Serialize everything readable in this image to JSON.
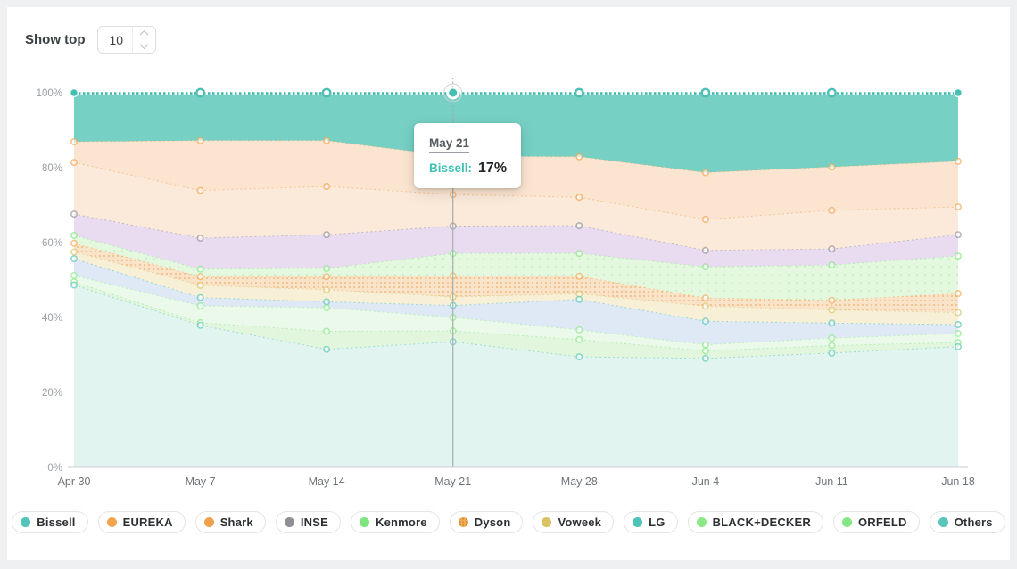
{
  "page": {
    "background": "#eef0f2",
    "card_background": "#ffffff"
  },
  "controls": {
    "show_top_label": "Show top",
    "show_top_value": "10"
  },
  "tooltip": {
    "date": "May 21",
    "series_label": "Bissell:",
    "value": "17%",
    "accent_color": "#3fc0b4"
  },
  "chart_data": {
    "type": "area",
    "stacked": true,
    "units": "percent",
    "x": [
      "Apr 30",
      "May 7",
      "May 14",
      "May 21",
      "May 28",
      "Jun 4",
      "Jun 11",
      "Jun 18"
    ],
    "y_ticks": [
      "0%",
      "20%",
      "40%",
      "60%",
      "80%",
      "100%"
    ],
    "ylim": [
      0,
      100
    ],
    "grid": false,
    "legend_position": "bottom",
    "highlight": {
      "x": "May 21",
      "x_index": 3,
      "series": "Bissell",
      "value_percent": 17
    },
    "axis_colors": {
      "tick_label": "#9aa0a3",
      "x_label": "#6e7479",
      "axis_line": "#c9cdd0"
    },
    "series": [
      {
        "name": "Bissell",
        "color": "#53c4b8",
        "fill": "#76d0c4",
        "values": [
          13.1,
          12.8,
          12.8,
          17.0,
          17.1,
          21.3,
          19.8,
          18.3
        ]
      },
      {
        "name": "EUREKA",
        "color": "#f2a44e",
        "fill": "#fbe4d0",
        "values": [
          5.5,
          13.3,
          12.2,
          10.2,
          10.8,
          12.5,
          11.6,
          12.2
        ]
      },
      {
        "name": "Shark",
        "color": "#f0a149",
        "fill": "#fbe9d9",
        "values": [
          13.8,
          12.7,
          12.9,
          8.4,
          7.6,
          8.3,
          10.3,
          7.4
        ]
      },
      {
        "name": "INSE",
        "color": "#8f8f97",
        "fill": "#e9dcf0",
        "values": [
          5.7,
          8.3,
          9.0,
          7.3,
          7.4,
          4.4,
          4.3,
          5.7
        ]
      },
      {
        "name": "Kenmore",
        "color": "#7fe67d",
        "fill": "#e4f8e0",
        "pattern": "dots-sparse",
        "pattern_dot": "#c8efc0",
        "values": [
          2.1,
          2.0,
          2.2,
          6.0,
          6.1,
          8.3,
          9.4,
          10.0
        ]
      },
      {
        "name": "Dyson",
        "color": "#efa94f",
        "fill": "#f9e3c9",
        "pattern": "dots-dense",
        "pattern_dot": "#f2c28c",
        "values": [
          2.3,
          2.3,
          3.5,
          5.6,
          4.7,
          2.2,
          2.6,
          5.1
        ]
      },
      {
        "name": "Voweek",
        "color": "#d9c365",
        "fill": "#f7efd6",
        "values": [
          1.8,
          3.3,
          3.2,
          2.3,
          1.5,
          4.0,
          3.5,
          3.2
        ]
      },
      {
        "name": "LG",
        "color": "#4ec3b7",
        "fill": "#dfe9f6",
        "values": [
          4.5,
          2.2,
          1.6,
          3.2,
          8.1,
          6.3,
          4.0,
          2.4
        ]
      },
      {
        "name": "BLACK+DECKER",
        "color": "#8ae887",
        "fill": "#ebf9ea",
        "values": [
          1.7,
          4.5,
          6.3,
          3.6,
          2.6,
          1.6,
          2.0,
          2.4
        ]
      },
      {
        "name": "ORFELD",
        "color": "#85e783",
        "fill": "#e2f6de",
        "values": [
          0.8,
          0.7,
          4.8,
          2.9,
          4.6,
          2.0,
          2.0,
          1.1
        ]
      },
      {
        "name": "Others",
        "color": "#57c5b9",
        "fill": "#e2f4f0",
        "values": [
          48.7,
          37.9,
          31.5,
          33.5,
          29.5,
          29.1,
          30.5,
          32.2
        ]
      }
    ]
  }
}
